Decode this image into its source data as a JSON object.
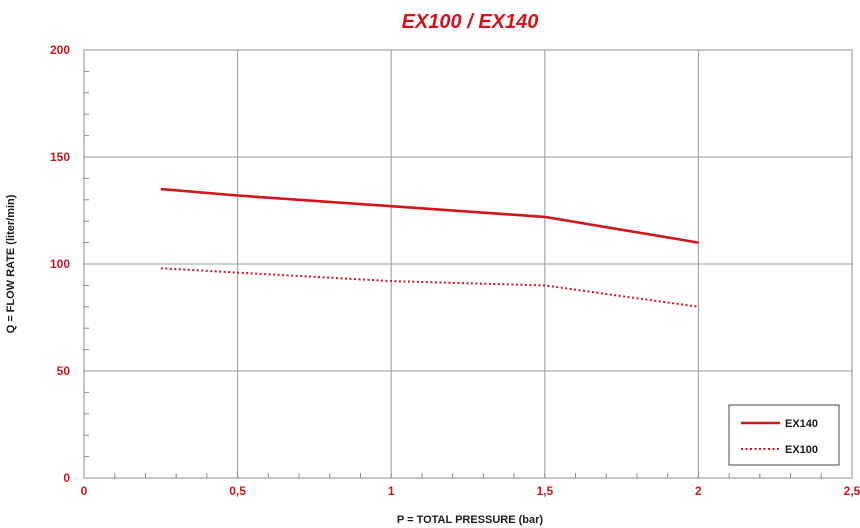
{
  "colors": {
    "accent": "#d3141c",
    "grid": "#9a9a9a",
    "frame": "#8c8c8c",
    "text": "#1a1a1a"
  },
  "chart_data": {
    "type": "line",
    "title": "EX100 / EX140",
    "xlabel": "P = TOTAL PRESSURE (bar)",
    "ylabel": "Q = FLOW RATE (liter/min)",
    "xlim": [
      0,
      2.5
    ],
    "ylim": [
      0,
      200
    ],
    "x_ticks": [
      0,
      0.5,
      1,
      1.5,
      2,
      2.5
    ],
    "x_tick_labels": [
      "0",
      "0,5",
      "1",
      "1,5",
      "2",
      "2,5"
    ],
    "y_ticks": [
      0,
      50,
      100,
      150,
      200
    ],
    "y_tick_labels": [
      "0",
      "50",
      "100",
      "150",
      "200"
    ],
    "grid": true,
    "legend_position": "bottom-right",
    "series": [
      {
        "name": "EX140",
        "style": "solid",
        "x": [
          0.25,
          0.5,
          1,
          1.5,
          2
        ],
        "y": [
          135,
          132,
          127,
          122,
          110
        ]
      },
      {
        "name": "EX100",
        "style": "dotted",
        "x": [
          0.25,
          0.5,
          1,
          1.5,
          2
        ],
        "y": [
          98,
          96,
          92,
          90,
          80
        ]
      }
    ]
  }
}
